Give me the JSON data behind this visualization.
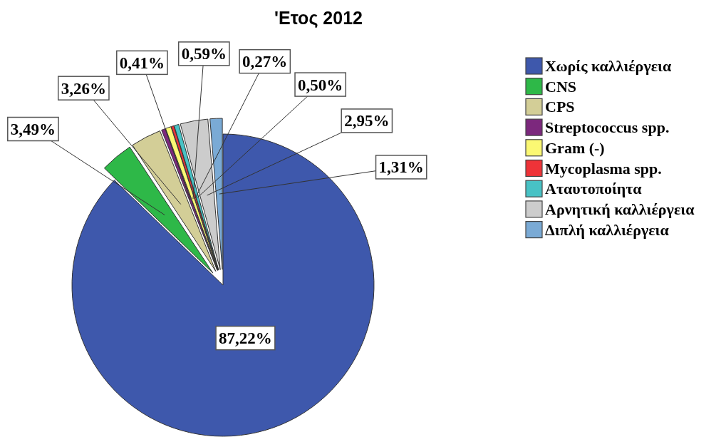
{
  "chart_data": {
    "type": "pie",
    "title": "'Ετος 2012",
    "categories": [
      "Χωρίς καλλιέργεια",
      "CNS",
      "CPS",
      "Streptococcus spp.",
      "Gram (-)",
      "Mycoplasma spp.",
      "Αταυτοποίητα",
      "Αρνητική καλλιέργεια",
      "Διπλή καλλιέργεια"
    ],
    "values": [
      87.22,
      3.49,
      3.26,
      0.41,
      0.59,
      0.27,
      0.5,
      2.95,
      1.31
    ],
    "value_labels": [
      "87,22%",
      "3,49%",
      "3,26%",
      "0,41%",
      "0,59%",
      "0,27%",
      "0,50%",
      "2,95%",
      "1,31%"
    ],
    "colors": [
      "#3e58ac",
      "#2eb848",
      "#d3ce97",
      "#7c287d",
      "#fbf873",
      "#ef3338",
      "#48c2c5",
      "#cccccc",
      "#7aaad5"
    ],
    "legend": "right"
  }
}
